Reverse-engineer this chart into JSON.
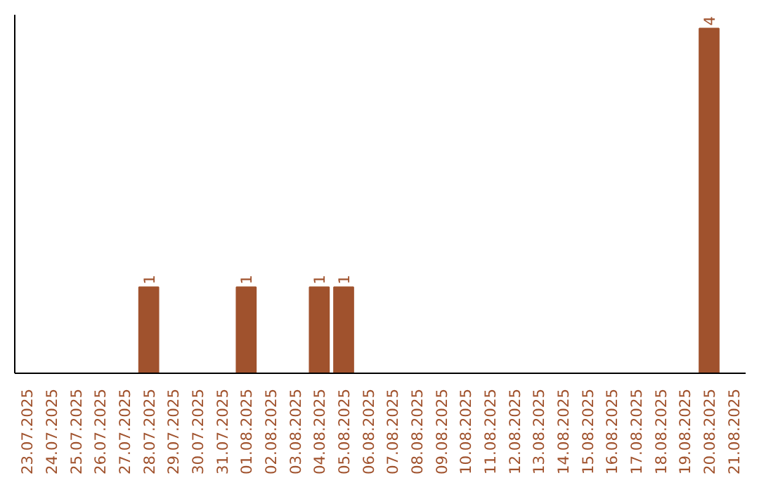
{
  "chart_data": {
    "type": "bar",
    "categories": [
      "23.07.2025",
      "24.07.2025",
      "25.07.2025",
      "26.07.2025",
      "27.07.2025",
      "28.07.2025",
      "29.07.2025",
      "30.07.2025",
      "31.07.2025",
      "01.08.2025",
      "02.08.2025",
      "03.08.2025",
      "04.08.2025",
      "05.08.2025",
      "06.08.2025",
      "07.08.2025",
      "08.08.2025",
      "09.08.2025",
      "10.08.2025",
      "11.08.2025",
      "12.08.2025",
      "13.08.2025",
      "14.08.2025",
      "15.08.2025",
      "16.08.2025",
      "17.08.2025",
      "18.08.2025",
      "19.08.2025",
      "20.08.2025",
      "21.08.2025"
    ],
    "values": [
      0,
      0,
      0,
      0,
      0,
      1,
      0,
      0,
      0,
      1,
      0,
      0,
      1,
      1,
      0,
      0,
      0,
      0,
      0,
      0,
      0,
      0,
      0,
      0,
      0,
      0,
      0,
      0,
      4,
      0
    ],
    "value_labels": [
      null,
      null,
      null,
      null,
      null,
      "1",
      null,
      null,
      null,
      "1",
      null,
      null,
      "1",
      "1",
      null,
      null,
      null,
      null,
      null,
      null,
      null,
      null,
      null,
      null,
      null,
      null,
      null,
      null,
      "4",
      null
    ],
    "color": "#a0522d",
    "grid": false,
    "tick_labels": "x"
  }
}
